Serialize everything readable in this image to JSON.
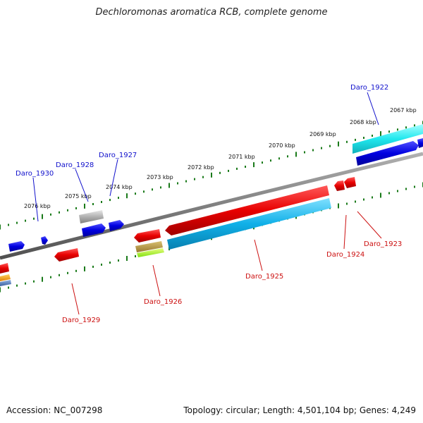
{
  "header": {
    "title": "Dechloromonas aromatica RCB, complete genome"
  },
  "footer": {
    "accession": "Accession: NC_007298",
    "stats": "Topology: circular; Length: 4,501,104 bp; Genes: 4,249"
  },
  "colors": {
    "backbone": "#808080",
    "tick": "#1a7a1a",
    "forward_label": "#1010cc",
    "reverse_label": "#cc1010"
  },
  "scale": {
    "labels": [
      "2076 kbp",
      "2075 kbp",
      "2074 kbp",
      "2073 kbp",
      "2072 kbp",
      "2071 kbp",
      "2070 kbp",
      "2069 kbp",
      "2068 kbp",
      "2067 kbp"
    ]
  },
  "genes": {
    "forward": [
      "Daro_1930",
      "Daro_1928",
      "Daro_1927",
      "Daro_1922"
    ],
    "reverse": [
      "Daro_1929",
      "Daro_1926",
      "Daro_1925",
      "Daro_1924",
      "Daro_1923"
    ]
  }
}
